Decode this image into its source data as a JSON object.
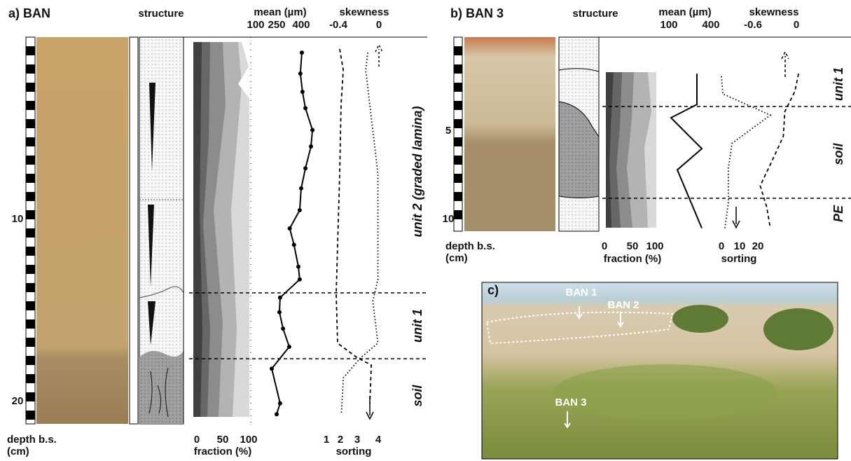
{
  "panel_a": {
    "label": "a) BAN",
    "structure_title": "structure",
    "mean_title": "mean (µm)",
    "skewness_title": "skewness",
    "depth_label": [
      "depth b.s.",
      "(cm)"
    ],
    "fraction_label": "fraction (%)",
    "sorting_label": "sorting",
    "depth_ticks": [
      10,
      20
    ],
    "mean_ticks": [
      100,
      250,
      400
    ],
    "skewness_ticks": [
      -0.4,
      0
    ],
    "fraction_ticks": [
      0,
      50,
      100
    ],
    "sorting_ticks": [
      1,
      2,
      3,
      4
    ],
    "units": [
      "unit 2 (graded lamina)",
      "unit 1",
      "soil"
    ],
    "mean": {
      "depth": [
        0.85,
        2.0,
        3.0,
        3.9,
        5.1,
        6.0,
        7.2,
        8.3,
        9.5,
        10.5,
        11.4,
        12.6,
        13.3,
        14.3,
        15.1,
        16.0,
        17.0,
        18.2,
        20.1,
        20.7
      ],
      "values": [
        404,
        395,
        408,
        426,
        469,
        460,
        426,
        400,
        391,
        330,
        356,
        383,
        391,
        271,
        267,
        289,
        327,
        215,
        271,
        250
      ]
    },
    "sorting": {
      "depth": [
        0.65,
        1.8,
        3.7,
        7.5,
        11.4,
        14.1,
        16.8,
        17.6,
        18.0,
        20.1
      ],
      "values": [
        1.95,
        2.17,
        2.04,
        1.95,
        1.8,
        1.7,
        1.8,
        3,
        3.67,
        3.6
      ]
    },
    "skewness": {
      "depth": [
        0.85,
        1.8,
        3.7,
        7.5,
        13.3,
        14.5,
        16.8,
        17.6,
        18.7,
        20.7
      ],
      "values": [
        -0.11,
        -0.13,
        -0.09,
        -0.01,
        -0.01,
        -0.06,
        -0.01,
        -0.18,
        -0.35,
        -0.37
      ]
    }
  },
  "panel_b": {
    "label": "b) BAN 3",
    "structure_title": "structure",
    "mean_title": "mean (µm)",
    "skewness_title": "skewness",
    "depth_label": [
      "depth b.s.",
      "(cm)"
    ],
    "fraction_label": "fraction (%)",
    "sorting_label": "sorting",
    "depth_ticks": [
      5,
      10
    ],
    "mean_ticks": [
      100,
      400
    ],
    "skewness_ticks": [
      -0.6,
      0
    ],
    "fraction_ticks": [
      0,
      50,
      100
    ],
    "sorting_ticks": [
      0,
      10,
      20
    ],
    "units": [
      "unit 1",
      "soil",
      "PE"
    ],
    "mean": {
      "depth": [
        1.75,
        3.5,
        4.25,
        6.0,
        7.2,
        10.5
      ],
      "values": [
        300,
        300,
        115,
        335,
        160,
        335
      ]
    },
    "skewness": {
      "depth": [
        1.75,
        2.75,
        3.9,
        5.3,
        6.9,
        8.1,
        9.3,
        10.5
      ],
      "values": [
        0.03,
        -0.02,
        -0.16,
        -0.18,
        -0.36,
        -0.5,
        -0.41,
        -0.36
      ]
    },
    "sorting": {
      "depth": [
        1.9,
        2.9,
        4.1,
        5.7,
        7.1,
        9.1,
        10.5
      ],
      "values": [
        0,
        0.8,
        26.9,
        5.8,
        3.8,
        3.8,
        1.9
      ]
    }
  },
  "panel_c": {
    "label": "c)",
    "sites": [
      "BAN 1",
      "BAN 2",
      "BAN 3"
    ]
  }
}
